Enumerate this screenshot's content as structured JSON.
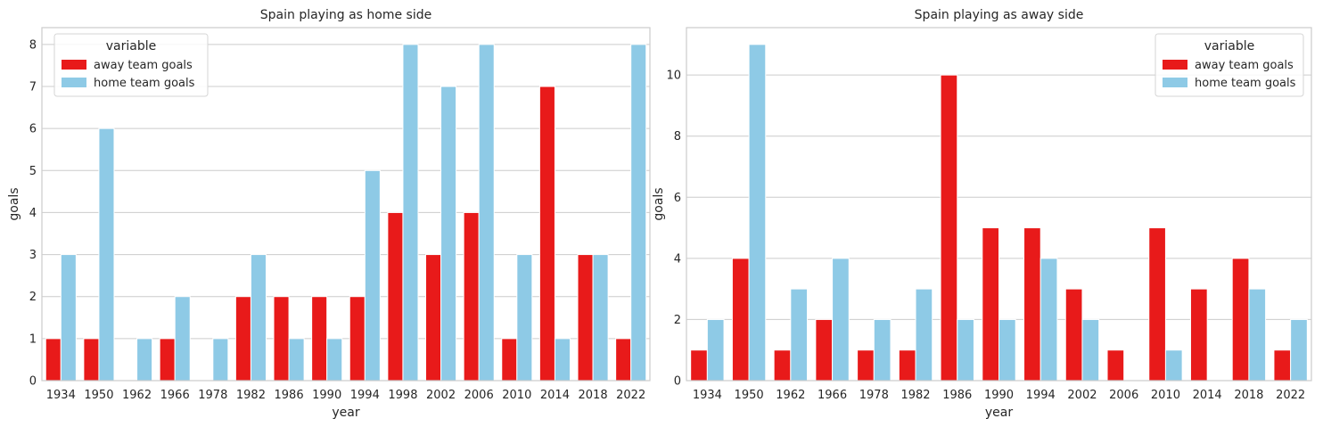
{
  "chart_data": [
    {
      "type": "bar",
      "title": "Spain playing as home side",
      "xlabel": "year",
      "ylabel": "goals",
      "categories": [
        "1934",
        "1950",
        "1962",
        "1966",
        "1978",
        "1982",
        "1986",
        "1990",
        "1994",
        "1998",
        "2002",
        "2006",
        "2010",
        "2014",
        "2018",
        "2022"
      ],
      "series": [
        {
          "name": "away team goals",
          "color": "#e81a1a",
          "values": [
            1,
            1,
            0,
            1,
            0,
            2,
            2,
            2,
            2,
            4,
            3,
            4,
            1,
            7,
            3,
            1
          ]
        },
        {
          "name": "home team goals",
          "color": "#8ecae6",
          "values": [
            3,
            6,
            1,
            2,
            1,
            3,
            1,
            1,
            5,
            8,
            7,
            8,
            3,
            1,
            3,
            8
          ]
        }
      ],
      "ylim": [
        0,
        8.4
      ],
      "yticks": [
        0,
        1,
        2,
        3,
        4,
        5,
        6,
        7,
        8
      ],
      "grid": true,
      "legend": {
        "title": "variable",
        "placement": "top-left"
      }
    },
    {
      "type": "bar",
      "title": "Spain playing as away side",
      "xlabel": "year",
      "ylabel": "goals",
      "categories": [
        "1934",
        "1950",
        "1962",
        "1966",
        "1978",
        "1982",
        "1986",
        "1990",
        "1994",
        "2002",
        "2006",
        "2010",
        "2014",
        "2018",
        "2022"
      ],
      "series": [
        {
          "name": "away team goals",
          "color": "#e81a1a",
          "values": [
            1,
            4,
            1,
            2,
            1,
            1,
            10,
            5,
            5,
            3,
            1,
            5,
            3,
            4,
            1
          ]
        },
        {
          "name": "home team goals",
          "color": "#8ecae6",
          "values": [
            2,
            11,
            3,
            4,
            2,
            3,
            2,
            2,
            4,
            2,
            0,
            1,
            0,
            3,
            2
          ]
        }
      ],
      "ylim": [
        0,
        11.55
      ],
      "yticks": [
        0,
        2,
        4,
        6,
        8,
        10
      ],
      "grid": true,
      "legend": {
        "title": "variable",
        "placement": "top-right"
      }
    }
  ]
}
